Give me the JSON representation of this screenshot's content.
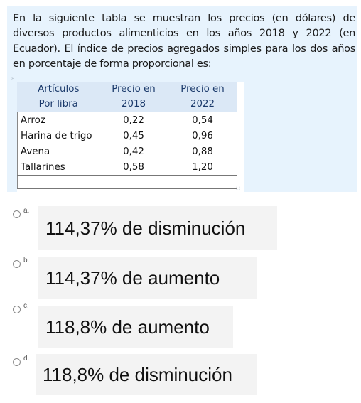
{
  "question": {
    "text": "En la siguiente tabla se muestran los precios (en dólares) de diversos productos alimenticios en los años 2018 y 2022 (en Ecuador). El índice de precios agregados simples para los dos años en porcentaje de forma proporcional es:",
    "table": {
      "header_row1": [
        "Artículos",
        "Precio en",
        "Precio en"
      ],
      "header_row2": [
        "Por libra",
        "2018",
        "2022"
      ],
      "rows": [
        [
          "Arroz",
          "0,22",
          "0,54"
        ],
        [
          "Harina de trigo",
          "0,45",
          "0,96"
        ],
        [
          "Avena",
          "0,42",
          "0,88"
        ],
        [
          "Tallarines",
          "0,58",
          "1,20"
        ]
      ]
    }
  },
  "options": [
    {
      "letter": "a.",
      "text": "114,37% de disminución"
    },
    {
      "letter": "b.",
      "text": "114,37% de aumento"
    },
    {
      "letter": "c.",
      "text": "118,8% de aumento"
    },
    {
      "letter": "d.",
      "text": "118,8% de disminución"
    }
  ]
}
